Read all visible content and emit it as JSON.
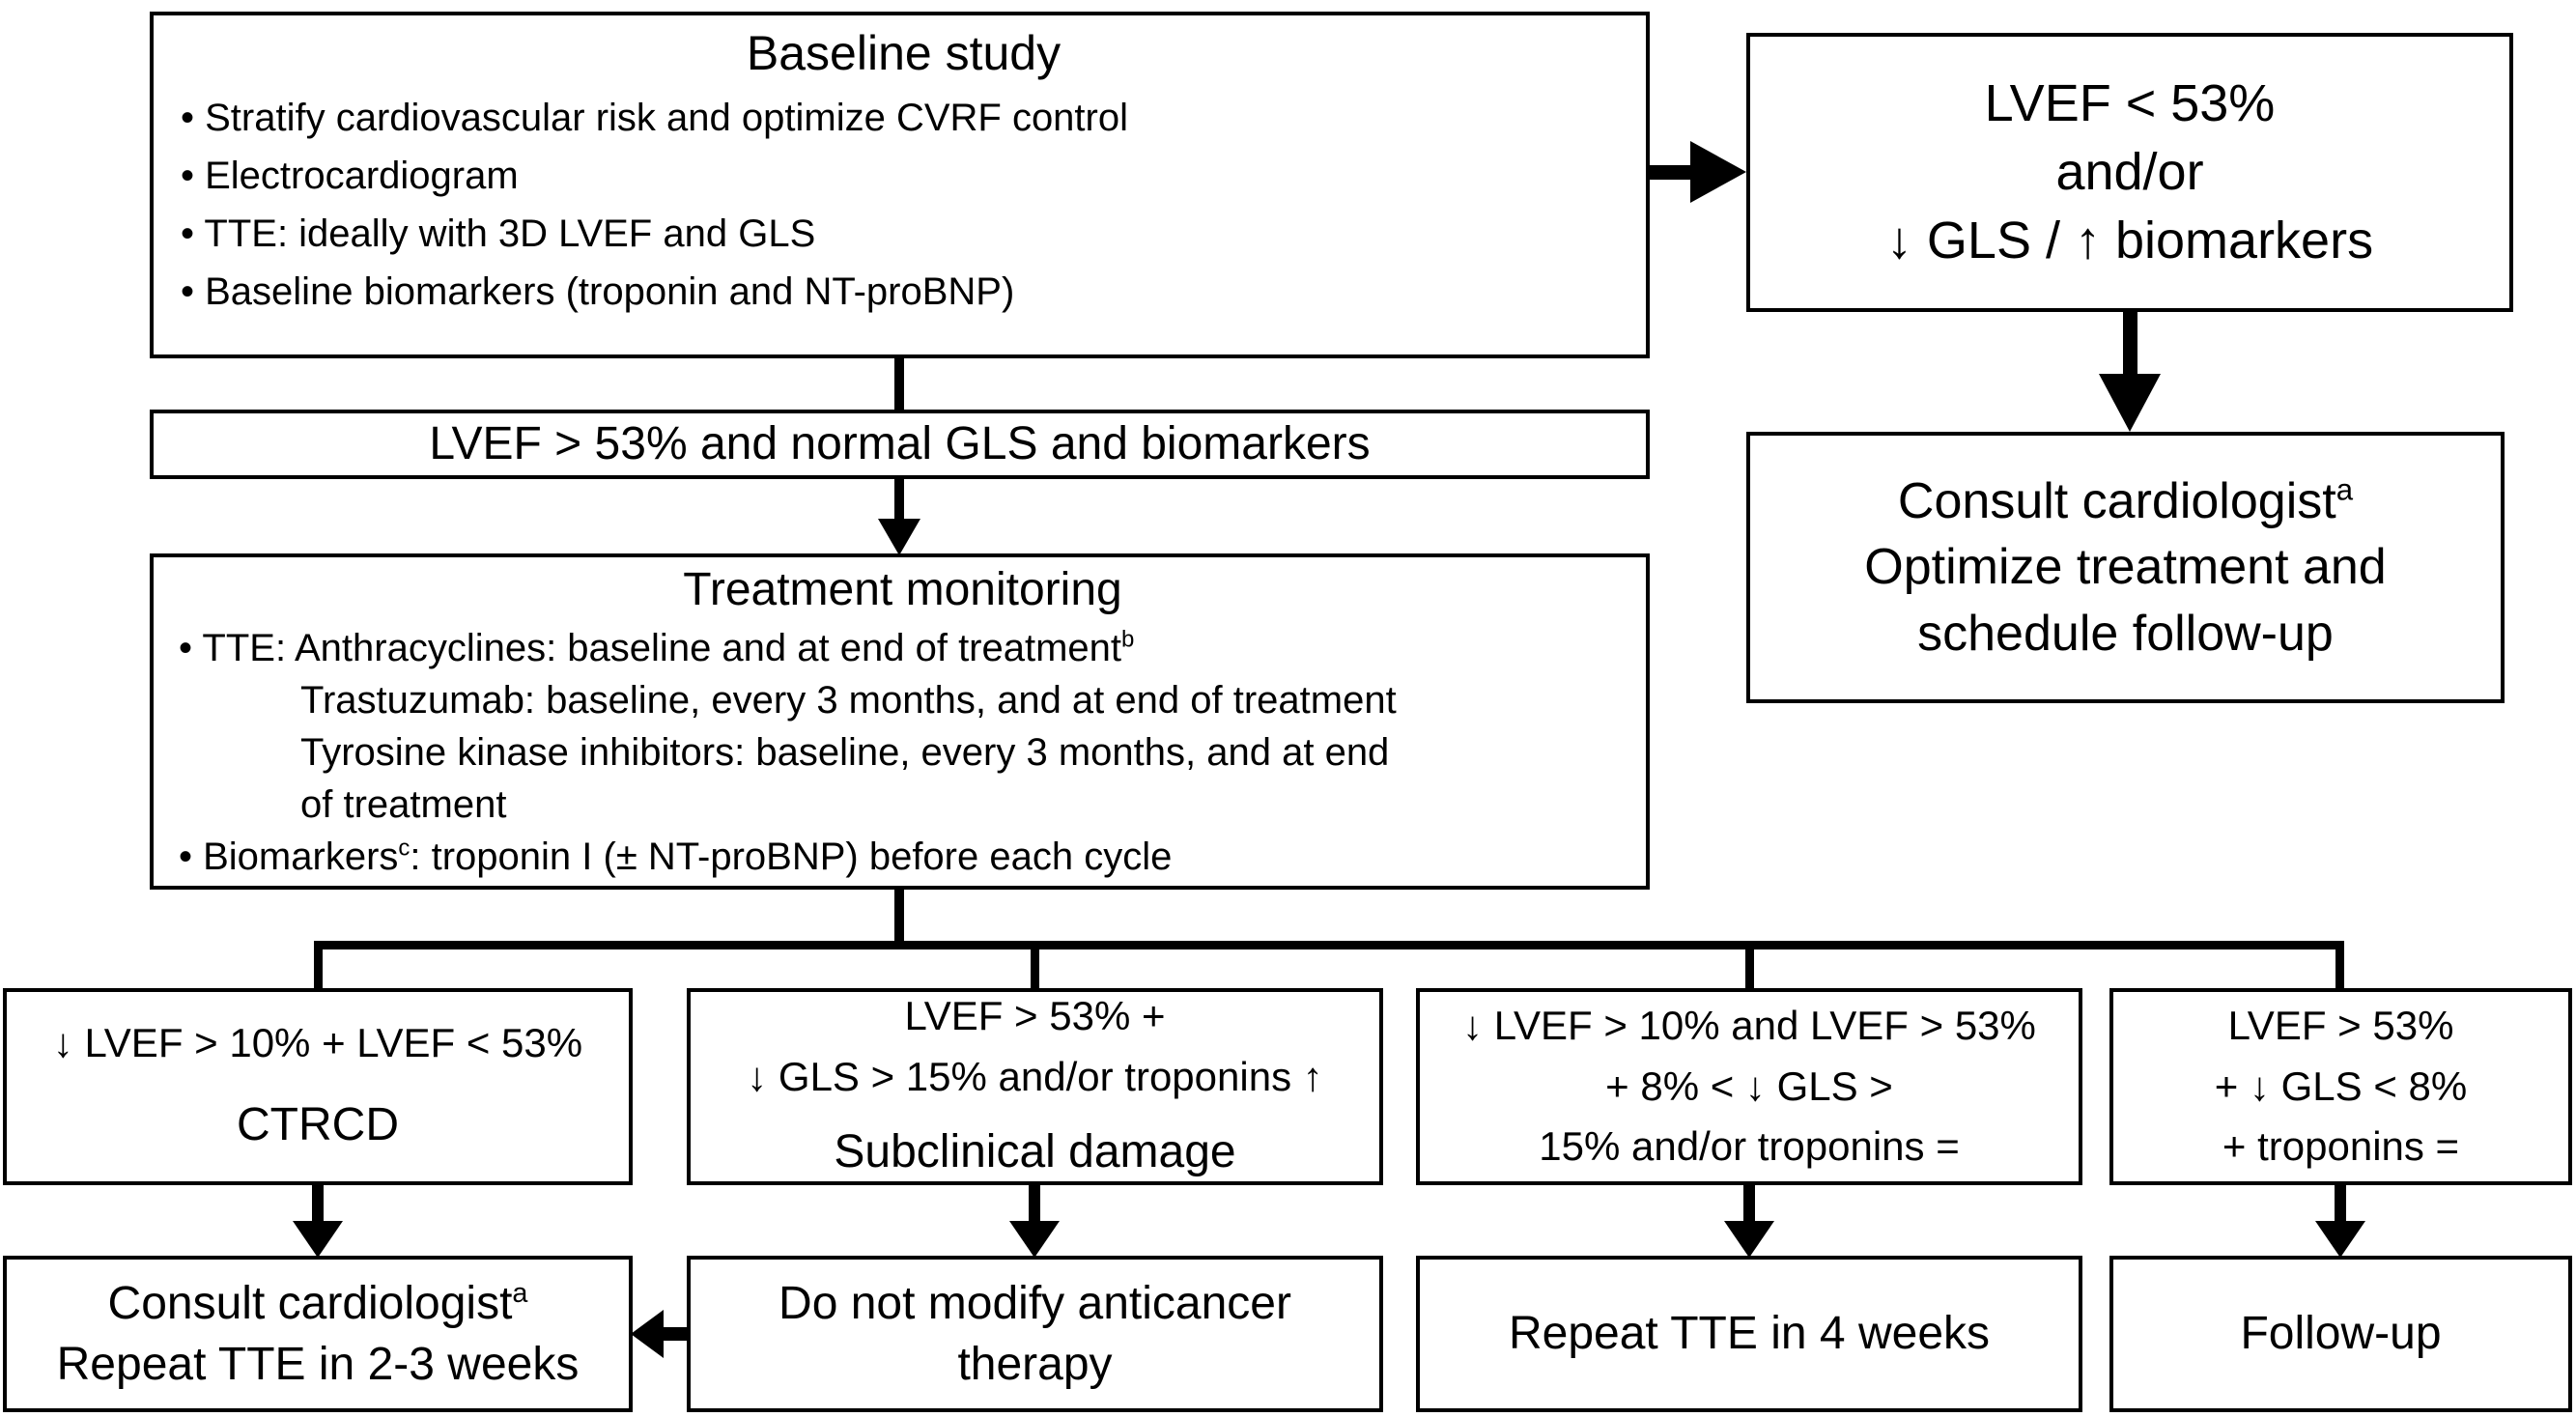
{
  "diagram": {
    "baseline": {
      "title": "Baseline study",
      "bullets": [
        "• Stratify cardiovascular risk and optimize CVRF control",
        "• Electrocardiogram",
        "• TTE: ideally with 3D LVEF and GLS",
        "• Baseline biomarkers (troponin and NT-proBNP)"
      ]
    },
    "abnormal": {
      "line1": "LVEF < 53%",
      "line2": "and/or",
      "line3": "↓ GLS / ↑ biomarkers"
    },
    "consult_right": {
      "line1_text": "Consult cardiologist",
      "line1_sup": "a",
      "line2": "Optimize treatment and",
      "line3": "schedule follow-up"
    },
    "normal_bar": "LVEF > 53% and normal GLS and biomarkers",
    "monitoring": {
      "title": "Treatment monitoring",
      "line1_text": "• TTE: Anthracyclines: baseline and at end of treatment",
      "line1_sup": "b",
      "line2": "Trastuzumab: baseline, every 3 months, and at end of treatment",
      "line3": "Tyrosine kinase inhibitors: baseline, every 3 months, and at end",
      "line4": "of treatment",
      "line5_pre": "• Biomarkers",
      "line5_sup": "c",
      "line5_post": ": troponin I (± NT-proBNP) before each cycle"
    },
    "criteria1": {
      "line1": "↓ LVEF > 10% + LVEF < 53%",
      "label": "CTRCD"
    },
    "criteria2": {
      "line1": "LVEF > 53% +",
      "line2": "↓ GLS > 15% and/or troponins ↑",
      "label": "Subclinical damage"
    },
    "criteria3": {
      "line1": "↓ LVEF > 10% and LVEF > 53%",
      "line2": "+ 8% < ↓ GLS >",
      "line3": "15% and/or troponins ="
    },
    "criteria4": {
      "line1": "LVEF > 53%",
      "line2": "+ ↓ GLS < 8%",
      "line3": "+ troponins ="
    },
    "action1": {
      "line1_text": "Consult cardiologist",
      "line1_sup": "a",
      "line2": "Repeat TTE in 2-3 weeks"
    },
    "action2": {
      "line1": "Do not modify anticancer",
      "line2": "therapy"
    },
    "action3": {
      "text": "Repeat TTE in 4 weeks"
    },
    "action4": {
      "text": "Follow-up"
    }
  }
}
